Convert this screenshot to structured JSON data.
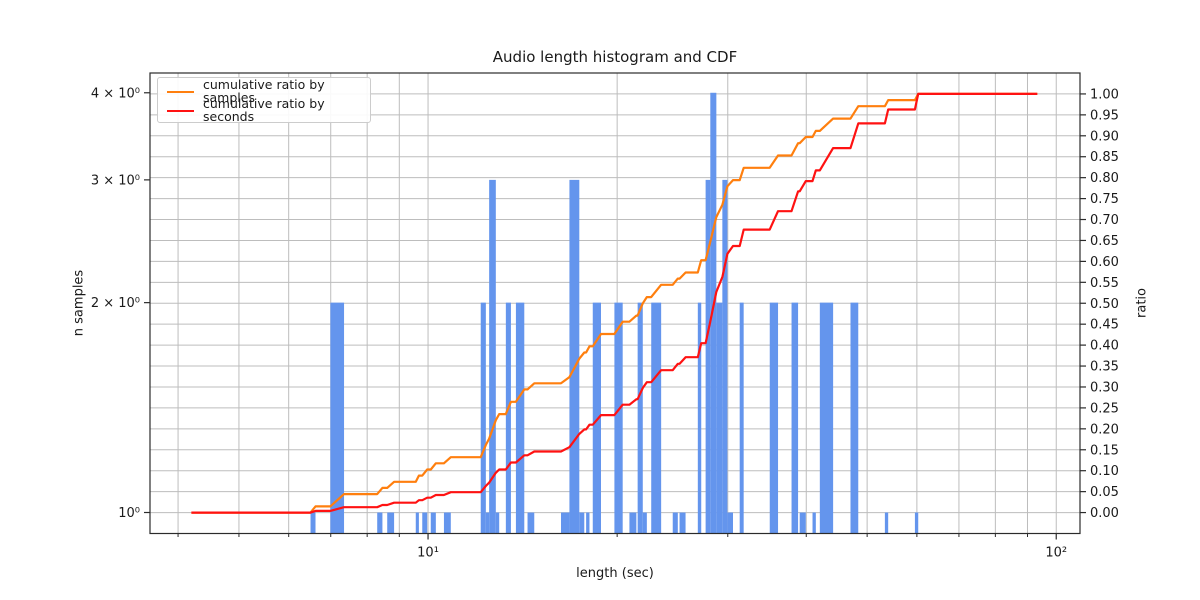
{
  "title": "Audio length histogram and CDF",
  "xlabel": "length (sec)",
  "ylabel_left": "n samples",
  "ylabel_right": "ratio",
  "legend": {
    "items": [
      {
        "label": "cumulative ratio by samples",
        "series": "samples"
      },
      {
        "label": "cumulative ratio by seconds",
        "series": "seconds"
      }
    ]
  },
  "colors": {
    "bar": "#6495ED",
    "samples_line": "#ff7f0e",
    "seconds_line": "#ff1212",
    "grid": "#bdbdbd",
    "spine": "#2b2b2b",
    "tick_text": "#1a1a1a"
  },
  "axes": {
    "x": {
      "scale": "log",
      "min": 3.609,
      "max": 109.1,
      "major_ticks": [
        {
          "value": 10,
          "label": "10¹"
        },
        {
          "value": 100,
          "label": "10²"
        }
      ],
      "minor_ticks": [
        4,
        5,
        6,
        7,
        8,
        9,
        20,
        30,
        40,
        50,
        60,
        70,
        80,
        90
      ]
    },
    "y_left": {
      "scale": "log",
      "min": 0.933,
      "max": 4.27,
      "ticks": [
        {
          "value": 1,
          "label": "10⁰"
        },
        {
          "value": 2,
          "label": "2 × 10⁰"
        },
        {
          "value": 3,
          "label": "3 × 10⁰"
        },
        {
          "value": 4,
          "label": "4 × 10⁰"
        }
      ]
    },
    "y_right": {
      "scale": "linear",
      "min": -0.05,
      "max": 1.05,
      "ticks": [
        0,
        0.05,
        0.1,
        0.15,
        0.2,
        0.25,
        0.3,
        0.35,
        0.4,
        0.45,
        0.5,
        0.55,
        0.6,
        0.65,
        0.7,
        0.75,
        0.8,
        0.85,
        0.9,
        0.95,
        1.0
      ],
      "grid_on": true
    }
  },
  "chart_data": {
    "type": "bar",
    "subtype": "log-histogram with cumulative distribution lines",
    "title": "Audio length histogram and CDF",
    "xlabel": "length (sec)",
    "ylabel": "n samples",
    "ylabel2": "ratio",
    "legend_position": "upper left",
    "grid": true,
    "xlim_sec": [
      3.609,
      109.1
    ],
    "ylim_counts": [
      0.933,
      4.27
    ],
    "ylim_ratio": [
      -0.05,
      1.05
    ],
    "cdf_domain_sec": [
      4.2,
      93.3
    ],
    "total_samples": 68,
    "bins_sec_start_end_count": [
      [
        6.5,
        6.62,
        1
      ],
      [
        6.99,
        7.35,
        2
      ],
      [
        8.3,
        8.46,
        1
      ],
      [
        8.61,
        8.83,
        1
      ],
      [
        9.56,
        9.67,
        1
      ],
      [
        9.79,
        9.97,
        1
      ],
      [
        10.1,
        10.29,
        1
      ],
      [
        10.6,
        10.87,
        1
      ],
      [
        12.13,
        12.36,
        2
      ],
      [
        12.36,
        12.51,
        1
      ],
      [
        12.51,
        12.82,
        3
      ],
      [
        12.82,
        12.98,
        1
      ],
      [
        13.3,
        13.55,
        2
      ],
      [
        13.8,
        14.23,
        2
      ],
      [
        14.4,
        14.76,
        1
      ],
      [
        16.28,
        16.79,
        1
      ],
      [
        16.79,
        17.41,
        3
      ],
      [
        17.41,
        17.73,
        1
      ],
      [
        17.85,
        18.07,
        1
      ],
      [
        18.29,
        18.85,
        2
      ],
      [
        19.8,
        20.41,
        2
      ],
      [
        20.92,
        21.46,
        1
      ],
      [
        21.56,
        21.97,
        2
      ],
      [
        21.97,
        22.3,
        1
      ],
      [
        22.66,
        23.5,
        2
      ],
      [
        24.52,
        24.98,
        1
      ],
      [
        25.14,
        25.7,
        1
      ],
      [
        26.88,
        27.22,
        2
      ],
      [
        27.66,
        28.14,
        3
      ],
      [
        28.14,
        28.77,
        4
      ],
      [
        28.77,
        29.41,
        2
      ],
      [
        29.41,
        29.96,
        3
      ],
      [
        29.96,
        30.58,
        1
      ],
      [
        31.34,
        31.8,
        2
      ],
      [
        34.99,
        36.07,
        2
      ],
      [
        37.9,
        38.82,
        2
      ],
      [
        39.05,
        39.93,
        1
      ],
      [
        40.93,
        41.43,
        1
      ],
      [
        42.04,
        44.14,
        2
      ],
      [
        47.04,
        48.4,
        2
      ],
      [
        53.36,
        54.01,
        1
      ],
      [
        59.57,
        60.3,
        1
      ]
    ],
    "series": [
      {
        "name": "cumulative ratio by samples",
        "definition": "cumsum(bin counts)/total samples vs bin edges, 0 before first bin, 1 after last bin"
      },
      {
        "name": "cumulative ratio by seconds",
        "definition": "cumsum(bin count × bin center seconds)/total seconds vs bin edges"
      }
    ]
  }
}
